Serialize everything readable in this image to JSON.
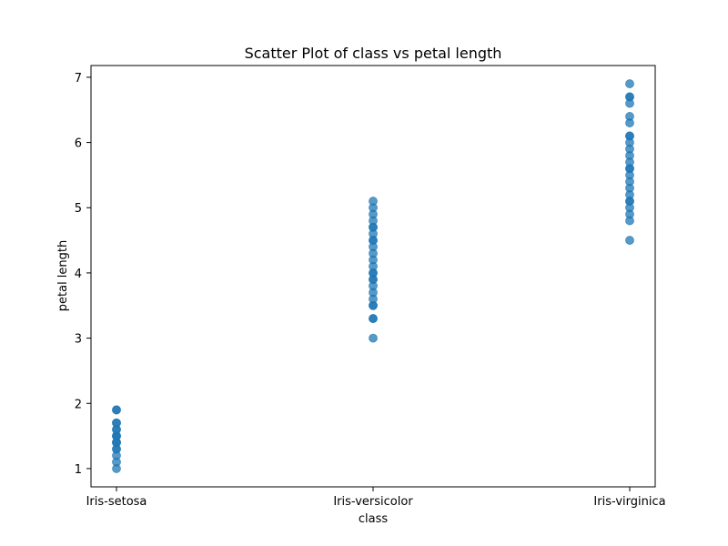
{
  "chart_data": {
    "type": "scatter",
    "title": "Scatter Plot of class vs petal length",
    "xlabel": "class",
    "ylabel": "petal length",
    "categories": [
      "Iris-setosa",
      "Iris-versicolor",
      "Iris-virginica"
    ],
    "ylim": [
      0.72,
      7.18
    ],
    "yticks": [
      1,
      2,
      3,
      4,
      5,
      6,
      7
    ],
    "grid": false,
    "legend": "none",
    "colors": {
      "point": "#1f77b4",
      "point_alpha": 0.75,
      "axis": "#000000"
    },
    "series": [
      {
        "category": "Iris-setosa",
        "values": [
          1.0,
          1.1,
          1.2,
          1.3,
          1.3,
          1.4,
          1.4,
          1.4,
          1.5,
          1.5,
          1.5,
          1.6,
          1.6,
          1.7,
          1.7,
          1.9,
          1.9
        ]
      },
      {
        "category": "Iris-versicolor",
        "values": [
          3.0,
          3.3,
          3.3,
          3.5,
          3.5,
          3.6,
          3.7,
          3.8,
          3.9,
          3.9,
          4.0,
          4.0,
          4.1,
          4.2,
          4.3,
          4.4,
          4.5,
          4.5,
          4.6,
          4.7,
          4.7,
          4.8,
          4.9,
          5.0,
          5.1
        ]
      },
      {
        "category": "Iris-virginica",
        "values": [
          4.5,
          4.8,
          4.9,
          5.0,
          5.1,
          5.1,
          5.2,
          5.3,
          5.4,
          5.5,
          5.6,
          5.6,
          5.7,
          5.8,
          5.9,
          6.0,
          6.1,
          6.1,
          6.3,
          6.4,
          6.6,
          6.7,
          6.7,
          6.9
        ]
      }
    ]
  }
}
